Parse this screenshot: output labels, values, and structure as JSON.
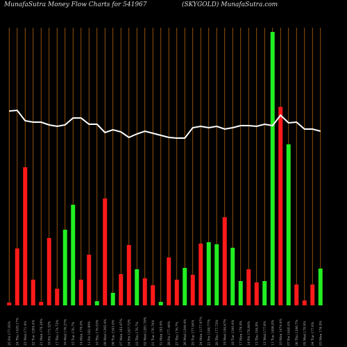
{
  "chart_data": {
    "type": "bar",
    "title": "MunafaSutra  Money Flow  Charts for 541967",
    "subtitle": "(SKYGOLD) MunafaSutra.com",
    "categories": [
      "25 Fri 177.05%",
      "24 Thu 1429.17%",
      "23 Wed 171.4%",
      "22 Tue 1284.4%",
      "21 Mon 176.24%",
      "18 Fri 173.32%",
      "17 Thu 174.72%",
      "16 Wed 176.27%",
      "15 Tue 176.7%",
      "14 Mon 176.0%",
      "11 Fri 182.99%",
      "10 Thu 176.03%",
      "09 Wed 1395.4%",
      "08 Tue 1343.9%",
      "07 Mon 183.97%",
      "04 Fri 1247.72%",
      "03 Thu 176.7%",
      "02 Wed 1281.78%",
      "01 Tue 176.74%",
      "31 Mon 182.6%",
      "28 Fri 177.44%",
      "27 Thu 176.7%",
      "26 Wed 1244.4%",
      "25 Tue 177.84%",
      "24 Mon 1177.97%",
      "21 Fri 1180.77%",
      "20 Thu 177.72%",
      "19 Wed 184.67%",
      "18 Tue 1340.4%",
      "17 Mon 176.9%",
      "14 Fri 176.64%",
      "13 Thu 184.8%",
      "12 Wed 177.6%",
      "11 Tue 1486.8%",
      "10 Mon 1474.4%",
      "07 Fri 1448.4%",
      "06 Thu 1246.7%",
      "05 Wed 178.9%",
      "04 Tue 177.6%",
      "03 Mon 176.9%"
    ],
    "values": [
      4,
      82,
      199,
      37,
      5,
      97,
      24,
      109,
      145,
      37,
      73,
      6,
      154,
      18,
      45,
      87,
      52,
      39,
      29,
      5,
      69,
      37,
      54,
      44,
      89,
      91,
      88,
      127,
      83,
      35,
      52,
      33,
      35,
      394,
      286,
      232,
      30,
      7,
      30,
      53
    ],
    "colors": [
      "#ff1a1a",
      "#ff1a1a",
      "#ff1a1a",
      "#ff1a1a",
      "#ff1a1a",
      "#ff1a1a",
      "#ff1a1a",
      "#22ee22",
      "#22ee22",
      "#ff1a1a",
      "#ff1a1a",
      "#22ee22",
      "#ff1a1a",
      "#22ee22",
      "#ff1a1a",
      "#ff1a1a",
      "#22ee22",
      "#ff1a1a",
      "#ff1a1a",
      "#22ee22",
      "#ff1a1a",
      "#ff1a1a",
      "#22ee22",
      "#ff1a1a",
      "#ff1a1a",
      "#22ee22",
      "#22ee22",
      "#ff1a1a",
      "#22ee22",
      "#22ee22",
      "#ff1a1a",
      "#ff1a1a",
      "#22ee22",
      "#22ee22",
      "#ff1a1a",
      "#22ee22",
      "#ff1a1a",
      "#ff1a1a",
      "#ff1a1a",
      "#22ee22"
    ],
    "line": {
      "color": "#ffffff",
      "values": [
        280,
        281,
        266,
        264,
        264,
        260,
        258,
        260,
        270,
        270,
        261,
        261,
        249,
        253,
        250,
        242,
        247,
        251,
        248,
        245,
        242,
        241,
        241,
        256,
        258,
        256,
        258,
        254,
        256,
        259,
        259,
        258,
        261,
        259,
        274,
        263,
        264,
        254,
        254,
        251
      ]
    },
    "ylim": [
      0,
      400
    ],
    "grid_color": "#b8660b"
  }
}
